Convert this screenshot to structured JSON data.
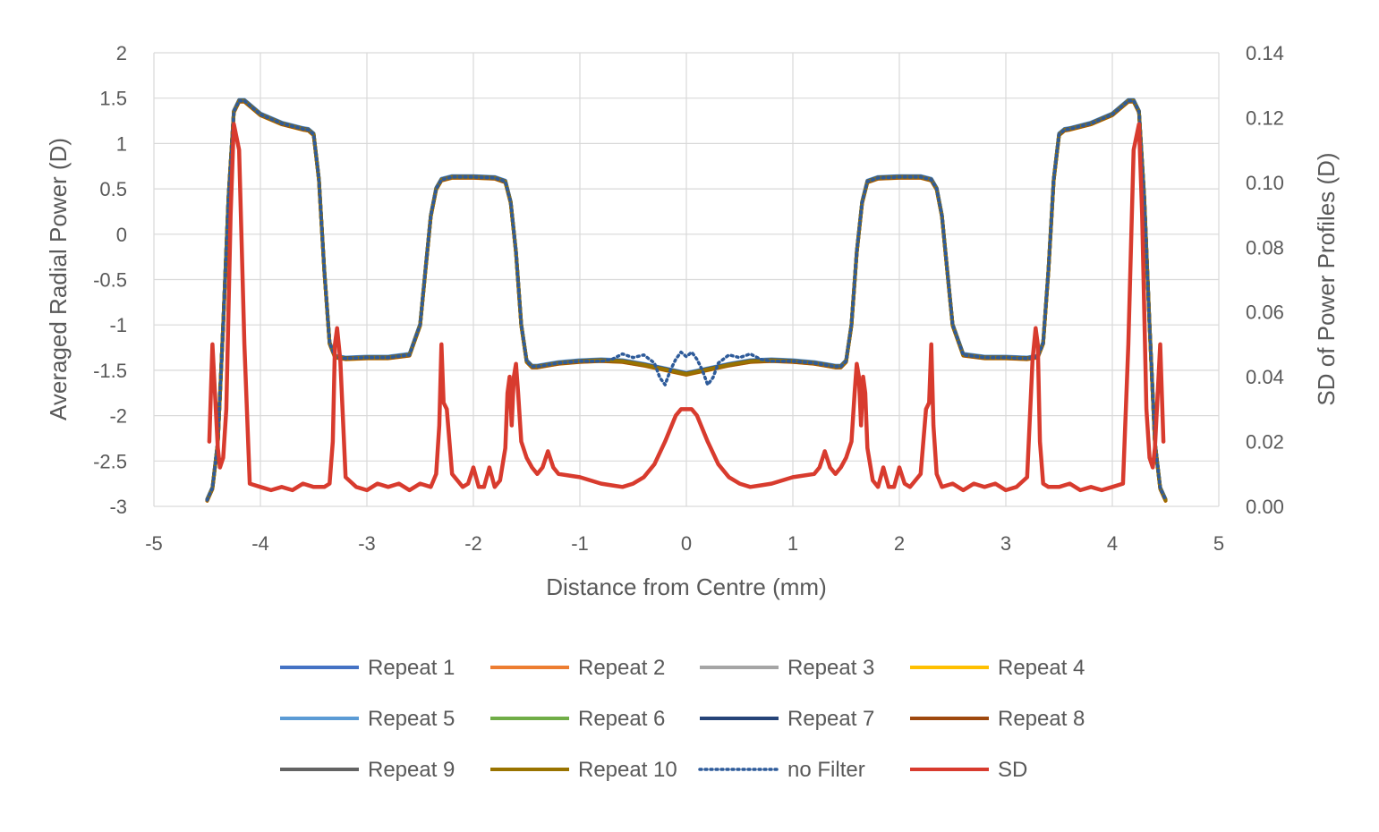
{
  "chart_data": {
    "type": "line",
    "title": "",
    "xlabel": "Distance from Centre (mm)",
    "ylabel": "Averaged Radial Power (D)",
    "y2label": "SD of Power Profiles (D)",
    "xlim": [
      -5,
      5
    ],
    "ylim": [
      -3,
      2
    ],
    "y2lim": [
      0,
      0.14
    ],
    "x_ticks": [
      "-5",
      "-4",
      "-3",
      "-2",
      "-1",
      "0",
      "1",
      "2",
      "3",
      "4",
      "5"
    ],
    "y_ticks": [
      "-3",
      "-2.5",
      "-2",
      "-1.5",
      "-1",
      "-0.5",
      "0",
      "0.5",
      "1",
      "1.5",
      "2"
    ],
    "y2_ticks": [
      "0.00",
      "0.02",
      "0.04",
      "0.06",
      "0.08",
      "0.10",
      "0.12",
      "0.14"
    ],
    "grid": true,
    "legend_position": "bottom",
    "repeat_profile": {
      "x": [
        0,
        0.4,
        0.6,
        0.8,
        1.0,
        1.2,
        1.3,
        1.4,
        1.45,
        1.5,
        1.55,
        1.6,
        1.65,
        1.7,
        1.8,
        2.0,
        2.2,
        2.3,
        2.35,
        2.4,
        2.45,
        2.5,
        2.6,
        2.8,
        3.0,
        3.2,
        3.3,
        3.35,
        3.4,
        3.45,
        3.5,
        3.55,
        3.6,
        3.8,
        4.0,
        4.15,
        4.2,
        4.25,
        4.3,
        4.35,
        4.4,
        4.45,
        4.5
      ],
      "y": [
        -1.54,
        -1.44,
        -1.4,
        -1.39,
        -1.4,
        -1.42,
        -1.44,
        -1.46,
        -1.46,
        -1.4,
        -1.0,
        -0.2,
        0.35,
        0.58,
        0.62,
        0.63,
        0.63,
        0.6,
        0.5,
        0.2,
        -0.4,
        -1.0,
        -1.33,
        -1.36,
        -1.36,
        -1.37,
        -1.35,
        -1.2,
        -0.4,
        0.6,
        1.1,
        1.15,
        1.16,
        1.22,
        1.32,
        1.47,
        1.47,
        1.35,
        0.4,
        -1.0,
        -2.3,
        -2.8,
        -2.93
      ]
    },
    "no_filter_profile": {
      "x": [
        0,
        0.05,
        0.1,
        0.15,
        0.2,
        0.25,
        0.3,
        0.4,
        0.5,
        0.6,
        0.7,
        0.8,
        1.0,
        1.2,
        1.3,
        1.4,
        1.45,
        1.5,
        1.55,
        1.6,
        1.65,
        1.7,
        1.8,
        2.0,
        2.2,
        2.3,
        2.35,
        2.4,
        2.45,
        2.5,
        2.6,
        2.8,
        3.0,
        3.2,
        3.3,
        3.35,
        3.4,
        3.45,
        3.5,
        3.55,
        3.6,
        3.8,
        4.0,
        4.15,
        4.2,
        4.25,
        4.3,
        4.35,
        4.4,
        4.45,
        4.5
      ],
      "y": [
        -1.35,
        -1.3,
        -1.38,
        -1.5,
        -1.66,
        -1.58,
        -1.42,
        -1.33,
        -1.36,
        -1.32,
        -1.38,
        -1.4,
        -1.4,
        -1.42,
        -1.44,
        -1.46,
        -1.46,
        -1.4,
        -1.0,
        -0.2,
        0.35,
        0.58,
        0.62,
        0.63,
        0.63,
        0.6,
        0.5,
        0.2,
        -0.4,
        -1.0,
        -1.33,
        -1.36,
        -1.36,
        -1.37,
        -1.35,
        -1.2,
        -0.4,
        0.6,
        1.1,
        1.15,
        1.16,
        1.22,
        1.32,
        1.47,
        1.47,
        1.35,
        0.4,
        -1.0,
        -2.3,
        -2.8,
        -2.93
      ]
    },
    "sd_profile": {
      "x": [
        0,
        0.05,
        0.1,
        0.2,
        0.3,
        0.4,
        0.5,
        0.6,
        0.7,
        0.8,
        1.0,
        1.2,
        1.25,
        1.3,
        1.35,
        1.4,
        1.45,
        1.5,
        1.55,
        1.58,
        1.6,
        1.62,
        1.64,
        1.66,
        1.68,
        1.7,
        1.75,
        1.8,
        1.85,
        1.9,
        1.95,
        2.0,
        2.05,
        2.1,
        2.2,
        2.25,
        2.28,
        2.3,
        2.32,
        2.35,
        2.4,
        2.5,
        2.6,
        2.7,
        2.8,
        2.9,
        3.0,
        3.1,
        3.2,
        3.25,
        3.28,
        3.3,
        3.32,
        3.35,
        3.4,
        3.5,
        3.6,
        3.7,
        3.8,
        3.9,
        4.0,
        4.1,
        4.15,
        4.2,
        4.25,
        4.28,
        4.3,
        4.32,
        4.35,
        4.38,
        4.4,
        4.45,
        4.48
      ],
      "y": [
        0.03,
        0.03,
        0.028,
        0.02,
        0.013,
        0.009,
        0.007,
        0.006,
        0.0065,
        0.007,
        0.009,
        0.01,
        0.012,
        0.017,
        0.012,
        0.01,
        0.012,
        0.015,
        0.02,
        0.035,
        0.044,
        0.04,
        0.025,
        0.04,
        0.035,
        0.018,
        0.008,
        0.006,
        0.012,
        0.006,
        0.006,
        0.012,
        0.007,
        0.006,
        0.01,
        0.03,
        0.032,
        0.05,
        0.025,
        0.01,
        0.006,
        0.007,
        0.005,
        0.007,
        0.006,
        0.007,
        0.005,
        0.006,
        0.009,
        0.045,
        0.055,
        0.05,
        0.02,
        0.007,
        0.006,
        0.006,
        0.007,
        0.005,
        0.006,
        0.005,
        0.006,
        0.007,
        0.05,
        0.11,
        0.118,
        0.09,
        0.06,
        0.03,
        0.015,
        0.012,
        0.018,
        0.05,
        0.02
      ]
    },
    "series": [
      {
        "name": "Repeat 1",
        "color": "#4472c4",
        "style": "solid"
      },
      {
        "name": "Repeat 2",
        "color": "#ed7d31",
        "style": "solid"
      },
      {
        "name": "Repeat 3",
        "color": "#a5a5a5",
        "style": "solid"
      },
      {
        "name": "Repeat 4",
        "color": "#ffc000",
        "style": "solid"
      },
      {
        "name": "Repeat 5",
        "color": "#5b9bd5",
        "style": "solid"
      },
      {
        "name": "Repeat 6",
        "color": "#70ad47",
        "style": "solid"
      },
      {
        "name": "Repeat 7",
        "color": "#264478",
        "style": "solid"
      },
      {
        "name": "Repeat 8",
        "color": "#9e480e",
        "style": "solid"
      },
      {
        "name": "Repeat 9",
        "color": "#636363",
        "style": "solid"
      },
      {
        "name": "Repeat 10",
        "color": "#997300",
        "style": "solid"
      },
      {
        "name": "no Filter",
        "color": "#2e5b9a",
        "style": "dotted"
      },
      {
        "name": "SD",
        "color": "#d83b2e",
        "style": "solid",
        "axis": "right"
      }
    ]
  }
}
